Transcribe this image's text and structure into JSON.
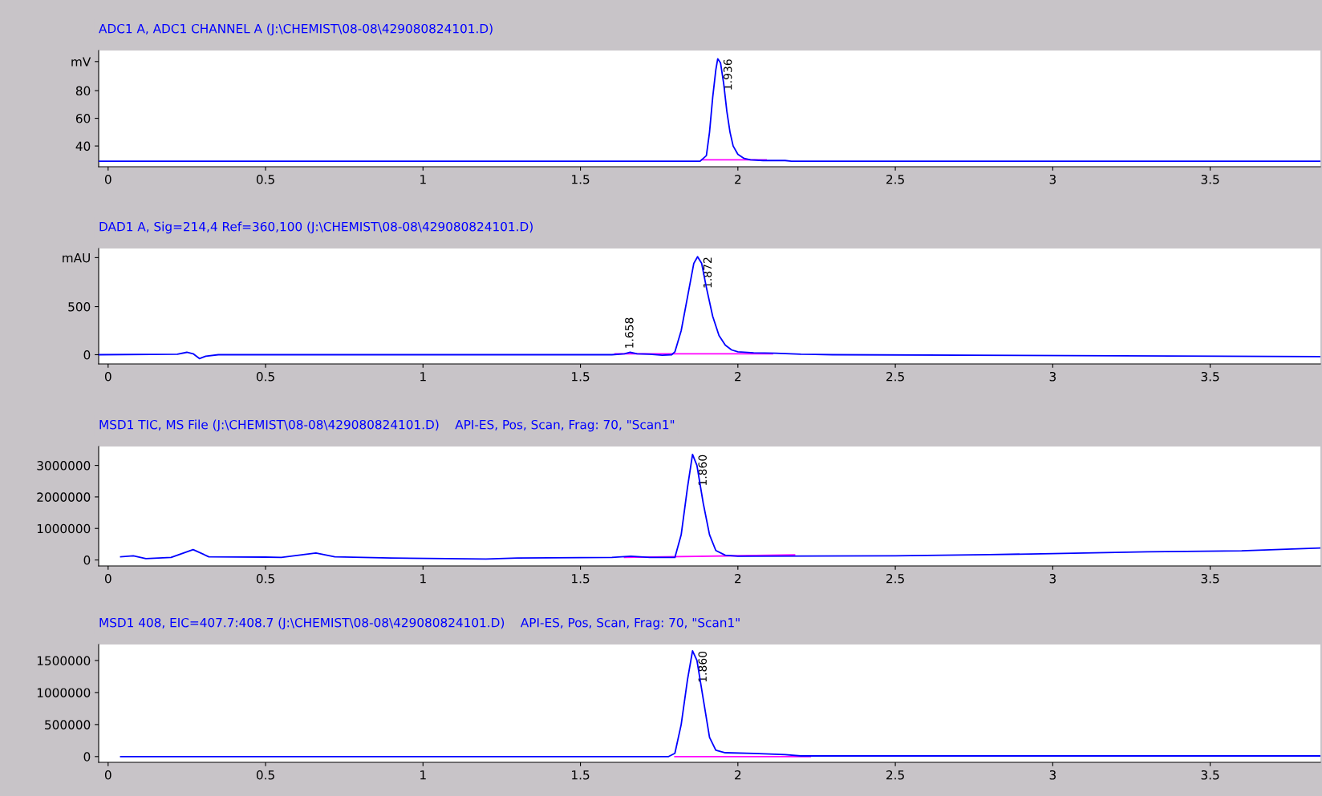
{
  "chart_data": [
    {
      "type": "line",
      "title": "ADC1 A, ADC1 CHANNEL A (J:\\CHEMIST\\08-08\\429080824101.D)",
      "xlim": [
        -0.03,
        3.85
      ],
      "xticks": [
        0,
        0.5,
        1,
        1.5,
        2,
        2.5,
        3,
        3.5
      ],
      "ylim": [
        25,
        109
      ],
      "yticks": [
        40,
        60,
        80,
        {
          "value": 101,
          "label": "mV"
        }
      ],
      "series": [
        {
          "color": "#0000ff",
          "x": [
            -0.03,
            1.88,
            1.9,
            1.91,
            1.92,
            1.93,
            1.936,
            1.945,
            1.955,
            1.965,
            1.975,
            1.985,
            2.0,
            2.02,
            2.04,
            2.08,
            2.15,
            2.17,
            3.85
          ],
          "values": [
            29,
            29,
            33,
            50,
            75,
            95,
            103,
            100,
            85,
            65,
            50,
            40,
            34,
            31,
            30,
            29.5,
            29.5,
            29,
            29
          ]
        },
        {
          "color": "#ff00ff",
          "x": [
            1.885,
            2.09
          ],
          "values": [
            30,
            30
          ]
        }
      ],
      "annotations": [
        {
          "text": "1.936",
          "x": 1.936,
          "y": 103
        }
      ]
    },
    {
      "type": "line",
      "title": "DAD1 A, Sig=214,4 Ref=360,100 (J:\\CHEMIST\\08-08\\429080824101.D)",
      "xlim": [
        -0.03,
        3.85
      ],
      "xticks": [
        0,
        0.5,
        1,
        1.5,
        2,
        2.5,
        3,
        3.5
      ],
      "ylim": [
        -96,
        1105
      ],
      "yticks": [
        0,
        500,
        {
          "value": 1010,
          "label": "mAU"
        }
      ],
      "series": [
        {
          "color": "#0000ff",
          "x": [
            -0.03,
            0.22,
            0.25,
            0.27,
            0.29,
            0.31,
            0.35,
            1.6,
            1.64,
            1.658,
            1.68,
            1.72,
            1.76,
            1.79,
            1.8,
            1.82,
            1.84,
            1.86,
            1.872,
            1.885,
            1.9,
            1.92,
            1.94,
            1.96,
            1.98,
            2.0,
            2.05,
            2.12,
            2.2,
            2.3,
            3.85
          ],
          "values": [
            0,
            5,
            25,
            10,
            -40,
            -15,
            0,
            0,
            10,
            25,
            10,
            5,
            -5,
            0,
            30,
            250,
            600,
            950,
            1020,
            950,
            700,
            400,
            200,
            100,
            50,
            30,
            20,
            15,
            5,
            0,
            -20
          ]
        },
        {
          "color": "#ff00ff",
          "x": [
            1.61,
            2.11
          ],
          "values": [
            10,
            10
          ]
        }
      ],
      "annotations": [
        {
          "text": "1.658",
          "x": 1.658,
          "y": 25
        },
        {
          "text": "1.872",
          "x": 1.872,
          "y": 1020
        }
      ]
    },
    {
      "type": "line",
      "title": "MSD1 TIC, MS File (J:\\CHEMIST\\08-08\\429080824101.D)    API-ES, Pos, Scan, Frag: 70, \"Scan1\"",
      "xlim": [
        -0.03,
        3.85
      ],
      "xticks": [
        0,
        0.5,
        1,
        1.5,
        2,
        2.5,
        3,
        3.5
      ],
      "ylim": [
        -190000,
        3600000
      ],
      "yticks": [
        0,
        1000000,
        2000000,
        3000000
      ],
      "series": [
        {
          "color": "#0000ff",
          "x": [
            0.04,
            0.08,
            0.12,
            0.2,
            0.27,
            0.32,
            0.5,
            0.55,
            0.66,
            0.72,
            0.9,
            1.2,
            1.3,
            1.6,
            1.66,
            1.72,
            1.8,
            1.82,
            1.84,
            1.856,
            1.87,
            1.89,
            1.91,
            1.93,
            1.96,
            2.0,
            2.5,
            2.8,
            3.0,
            3.3,
            3.6,
            3.85
          ],
          "values": [
            100000,
            130000,
            40000,
            80000,
            330000,
            100000,
            90000,
            80000,
            220000,
            100000,
            60000,
            30000,
            60000,
            80000,
            120000,
            80000,
            80000,
            800000,
            2300000,
            3350000,
            3000000,
            1800000,
            800000,
            300000,
            150000,
            120000,
            130000,
            170000,
            200000,
            260000,
            290000,
            380000
          ]
        },
        {
          "color": "#ff00ff",
          "x": [
            1.64,
            2.18
          ],
          "values": [
            80000,
            160000
          ]
        }
      ],
      "annotations": [
        {
          "text": "1.860",
          "x": 1.856,
          "y": 3350000
        }
      ]
    },
    {
      "type": "line",
      "title": "MSD1 408, EIC=407.7:408.7 (J:\\CHEMIST\\08-08\\429080824101.D)    API-ES, Pos, Scan, Frag: 70, \"Scan1\"",
      "xlim": [
        -0.03,
        3.85
      ],
      "xticks": [
        0,
        0.5,
        1,
        1.5,
        2,
        2.5,
        3,
        3.5
      ],
      "ylim": [
        -90000,
        1750000
      ],
      "yticks": [
        0,
        500000,
        1000000,
        1500000
      ],
      "series": [
        {
          "color": "#0000ff",
          "x": [
            0.04,
            1.78,
            1.8,
            1.82,
            1.84,
            1.856,
            1.87,
            1.89,
            1.91,
            1.93,
            1.96,
            2.05,
            2.15,
            2.2,
            3.85
          ],
          "values": [
            0,
            0,
            50000,
            500000,
            1200000,
            1650000,
            1500000,
            900000,
            300000,
            100000,
            60000,
            50000,
            30000,
            10000,
            10000
          ]
        },
        {
          "color": "#ff00ff",
          "x": [
            1.8,
            2.23
          ],
          "values": [
            0,
            0
          ]
        }
      ],
      "annotations": [
        {
          "text": "1.860",
          "x": 1.856,
          "y": 1650000
        }
      ]
    }
  ]
}
